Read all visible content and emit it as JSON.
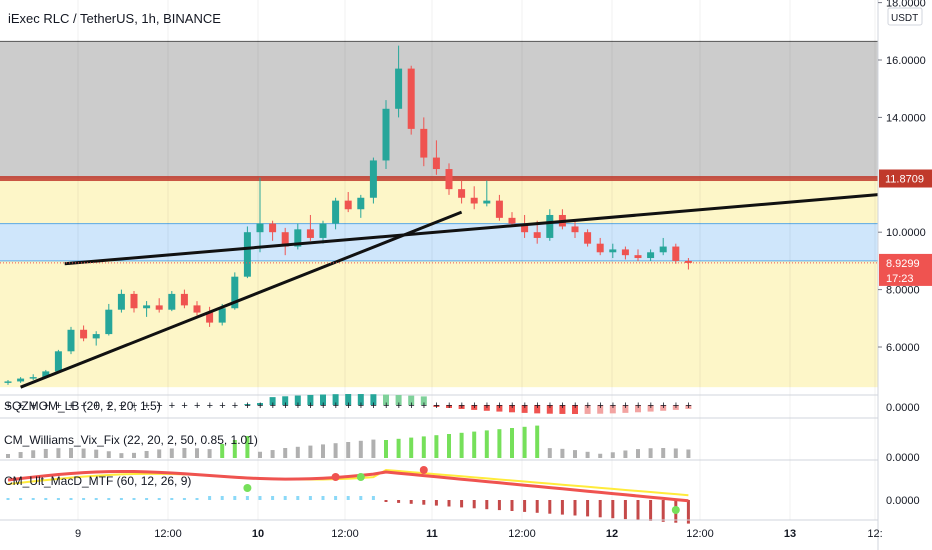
{
  "title": "iExec RLC / TetherUS, 1h, BINANCE",
  "unit": "USDT",
  "price_axis": [
    "18.0000",
    "16.0000",
    "14.0000",
    "10.0000",
    "8.0000",
    "6.0000"
  ],
  "price_ticks": [
    18,
    16,
    14,
    10,
    8,
    6
  ],
  "badges": {
    "resistance": "11.8709",
    "last_price": "8.9299",
    "countdown": "17:23"
  },
  "time_axis": [
    "9",
    "12:00",
    "10",
    "12:00",
    "11",
    "12:00",
    "12",
    "12:00",
    "13",
    "12:"
  ],
  "indicators": [
    {
      "label": "SQZMOM_LB (20, 2, 20, 1.5)",
      "value": "0.0000"
    },
    {
      "label": "CM_Williams_Vix_Fix (22, 20, 2, 50, 0.85, 1.01)",
      "value": "0.0000"
    },
    {
      "label": "CM_Ult_MacD_MTF (60, 12, 26, 9)",
      "value": "0.0000"
    }
  ],
  "colors": {
    "up": "#26a69a",
    "down": "#ef5350",
    "resistance_line": "#c0392b",
    "last_price": "#ef5350",
    "overbought_zone": "#cccccc",
    "range_zone": "#fdf6c8",
    "support_band": "#cfe6fb",
    "vix_green": "#76e05a",
    "vix_gray": "#b0b0b0"
  },
  "chart_data": {
    "type": "candlestick",
    "symbol": "iExec RLC / TetherUS",
    "interval": "1h",
    "exchange": "BINANCE",
    "ylim": [
      4.5,
      18.5
    ],
    "resistance": 11.8709,
    "zones": {
      "gray": [
        11.87,
        16.65
      ],
      "yellow": [
        4.6,
        11.87
      ],
      "blue": [
        9.0,
        10.3
      ]
    },
    "trendlines": [
      {
        "from": [
          4.5,
          8.9
        ],
        "to": [
          42.0,
          10.3
        ]
      },
      {
        "from": [
          1.0,
          4.6
        ],
        "to": [
          36.0,
          10.7
        ]
      }
    ],
    "candles": [
      {
        "t": 0,
        "o": 4.75,
        "h": 4.85,
        "l": 4.68,
        "c": 4.8
      },
      {
        "t": 1,
        "o": 4.8,
        "h": 4.95,
        "l": 4.75,
        "c": 4.9
      },
      {
        "t": 2,
        "o": 4.9,
        "h": 5.05,
        "l": 4.85,
        "c": 4.95
      },
      {
        "t": 3,
        "o": 4.95,
        "h": 5.2,
        "l": 4.9,
        "c": 5.15
      },
      {
        "t": 4,
        "o": 5.15,
        "h": 5.9,
        "l": 5.1,
        "c": 5.85
      },
      {
        "t": 5,
        "o": 5.85,
        "h": 6.7,
        "l": 5.75,
        "c": 6.6
      },
      {
        "t": 6,
        "o": 6.6,
        "h": 6.75,
        "l": 6.2,
        "c": 6.3
      },
      {
        "t": 7,
        "o": 6.3,
        "h": 6.55,
        "l": 6.05,
        "c": 6.45
      },
      {
        "t": 8,
        "o": 6.45,
        "h": 7.5,
        "l": 6.4,
        "c": 7.3
      },
      {
        "t": 9,
        "o": 7.3,
        "h": 8.0,
        "l": 7.2,
        "c": 7.85
      },
      {
        "t": 10,
        "o": 7.85,
        "h": 7.95,
        "l": 7.2,
        "c": 7.35
      },
      {
        "t": 11,
        "o": 7.35,
        "h": 7.6,
        "l": 7.05,
        "c": 7.45
      },
      {
        "t": 12,
        "o": 7.45,
        "h": 7.7,
        "l": 7.2,
        "c": 7.3
      },
      {
        "t": 13,
        "o": 7.3,
        "h": 7.95,
        "l": 7.25,
        "c": 7.85
      },
      {
        "t": 14,
        "o": 7.85,
        "h": 8.0,
        "l": 7.35,
        "c": 7.45
      },
      {
        "t": 15,
        "o": 7.45,
        "h": 7.6,
        "l": 7.1,
        "c": 7.2
      },
      {
        "t": 16,
        "o": 7.2,
        "h": 7.4,
        "l": 6.7,
        "c": 6.85
      },
      {
        "t": 17,
        "o": 6.85,
        "h": 7.5,
        "l": 6.75,
        "c": 7.35
      },
      {
        "t": 18,
        "o": 7.35,
        "h": 8.6,
        "l": 7.3,
        "c": 8.45
      },
      {
        "t": 19,
        "o": 8.45,
        "h": 10.2,
        "l": 8.4,
        "c": 10.0
      },
      {
        "t": 20,
        "o": 10.0,
        "h": 11.9,
        "l": 9.3,
        "c": 10.3
      },
      {
        "t": 21,
        "o": 10.3,
        "h": 10.4,
        "l": 9.7,
        "c": 10.0
      },
      {
        "t": 22,
        "o": 10.0,
        "h": 10.15,
        "l": 9.2,
        "c": 9.5
      },
      {
        "t": 23,
        "o": 9.5,
        "h": 10.3,
        "l": 9.4,
        "c": 10.1
      },
      {
        "t": 24,
        "o": 10.1,
        "h": 10.6,
        "l": 9.7,
        "c": 9.8
      },
      {
        "t": 25,
        "o": 9.8,
        "h": 10.4,
        "l": 9.6,
        "c": 10.3
      },
      {
        "t": 26,
        "o": 10.3,
        "h": 11.2,
        "l": 10.1,
        "c": 11.1
      },
      {
        "t": 27,
        "o": 11.1,
        "h": 11.4,
        "l": 10.7,
        "c": 10.8
      },
      {
        "t": 28,
        "o": 10.8,
        "h": 11.3,
        "l": 10.5,
        "c": 11.2
      },
      {
        "t": 29,
        "o": 11.2,
        "h": 12.6,
        "l": 11.0,
        "c": 12.5
      },
      {
        "t": 30,
        "o": 12.5,
        "h": 14.6,
        "l": 12.2,
        "c": 14.3
      },
      {
        "t": 31,
        "o": 14.3,
        "h": 16.5,
        "l": 14.0,
        "c": 15.7
      },
      {
        "t": 32,
        "o": 15.7,
        "h": 15.8,
        "l": 13.4,
        "c": 13.6
      },
      {
        "t": 33,
        "o": 13.6,
        "h": 14.0,
        "l": 12.3,
        "c": 12.6
      },
      {
        "t": 34,
        "o": 12.6,
        "h": 13.2,
        "l": 12.0,
        "c": 12.2
      },
      {
        "t": 35,
        "o": 12.2,
        "h": 12.4,
        "l": 11.3,
        "c": 11.5
      },
      {
        "t": 36,
        "o": 11.5,
        "h": 11.8,
        "l": 11.0,
        "c": 11.2
      },
      {
        "t": 37,
        "o": 11.2,
        "h": 11.6,
        "l": 10.8,
        "c": 11.0
      },
      {
        "t": 38,
        "o": 11.0,
        "h": 11.8,
        "l": 10.9,
        "c": 11.1
      },
      {
        "t": 39,
        "o": 11.1,
        "h": 11.3,
        "l": 10.4,
        "c": 10.5
      },
      {
        "t": 40,
        "o": 10.5,
        "h": 10.7,
        "l": 10.2,
        "c": 10.3
      },
      {
        "t": 41,
        "o": 10.3,
        "h": 10.6,
        "l": 9.8,
        "c": 10.0
      },
      {
        "t": 42,
        "o": 10.0,
        "h": 10.4,
        "l": 9.6,
        "c": 9.8
      },
      {
        "t": 43,
        "o": 9.8,
        "h": 10.8,
        "l": 9.7,
        "c": 10.6
      },
      {
        "t": 44,
        "o": 10.6,
        "h": 10.8,
        "l": 10.1,
        "c": 10.2
      },
      {
        "t": 45,
        "o": 10.2,
        "h": 10.4,
        "l": 9.8,
        "c": 10.0
      },
      {
        "t": 46,
        "o": 10.0,
        "h": 10.1,
        "l": 9.5,
        "c": 9.6
      },
      {
        "t": 47,
        "o": 9.6,
        "h": 9.8,
        "l": 9.2,
        "c": 9.3
      },
      {
        "t": 48,
        "o": 9.3,
        "h": 9.6,
        "l": 9.1,
        "c": 9.4
      },
      {
        "t": 49,
        "o": 9.4,
        "h": 9.5,
        "l": 9.05,
        "c": 9.2
      },
      {
        "t": 50,
        "o": 9.2,
        "h": 9.4,
        "l": 9.0,
        "c": 9.1
      },
      {
        "t": 51,
        "o": 9.1,
        "h": 9.4,
        "l": 9.0,
        "c": 9.3
      },
      {
        "t": 52,
        "o": 9.3,
        "h": 9.8,
        "l": 9.2,
        "c": 9.5
      },
      {
        "t": 53,
        "o": 9.5,
        "h": 9.6,
        "l": 8.9,
        "c": 9.0
      },
      {
        "t": 54,
        "o": 9.0,
        "h": 9.1,
        "l": 8.7,
        "c": 8.93
      }
    ]
  }
}
